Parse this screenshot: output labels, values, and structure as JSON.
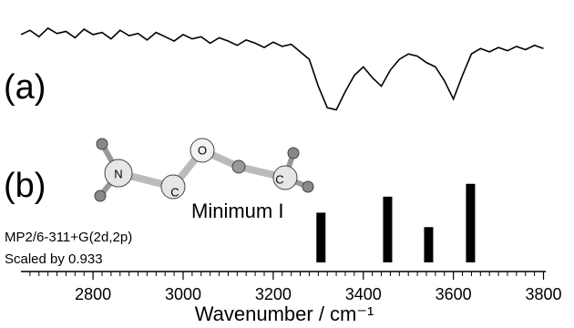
{
  "chart_data": [
    {
      "type": "line",
      "panel_label": "(a)",
      "x": [
        2640,
        2660,
        2680,
        2700,
        2720,
        2740,
        2760,
        2780,
        2800,
        2820,
        2840,
        2860,
        2880,
        2900,
        2920,
        2940,
        2960,
        2980,
        3000,
        3020,
        3040,
        3060,
        3080,
        3100,
        3120,
        3140,
        3160,
        3180,
        3200,
        3220,
        3240,
        3260,
        3280,
        3300,
        3320,
        3340,
        3360,
        3380,
        3400,
        3420,
        3440,
        3460,
        3480,
        3500,
        3520,
        3540,
        3560,
        3580,
        3600,
        3620,
        3640,
        3660,
        3680,
        3700,
        3720,
        3740,
        3760,
        3780,
        3800
      ],
      "values": [
        78,
        82,
        76,
        84,
        79,
        81,
        75,
        83,
        78,
        80,
        74,
        82,
        77,
        79,
        73,
        80,
        76,
        72,
        78,
        74,
        76,
        70,
        75,
        72,
        68,
        73,
        70,
        66,
        71,
        67,
        69,
        62,
        55,
        30,
        10,
        8,
        25,
        40,
        48,
        38,
        30,
        45,
        55,
        60,
        58,
        52,
        48,
        35,
        18,
        40,
        60,
        65,
        62,
        66,
        63,
        67,
        64,
        68,
        65
      ],
      "color": "#000000",
      "ylim": [
        0,
        100
      ]
    },
    {
      "type": "stick",
      "panel_label": "(b)",
      "annotation": "Minimum I",
      "method": "MP2/6-311+G(2d,2p)",
      "scaling": "Scaled by 0.933",
      "molecule_labels": [
        "N",
        "C",
        "O",
        "C"
      ],
      "x": [
        3306,
        3454,
        3545,
        3638
      ],
      "values": [
        62,
        82,
        44,
        98
      ],
      "color": "#000000",
      "ylim": [
        0,
        100
      ],
      "xlim": [
        2640,
        3805
      ],
      "xticks": [
        2800,
        3000,
        3200,
        3400,
        3600,
        3800
      ],
      "xminor_ticks": [
        2660,
        2680,
        2700,
        2720,
        2740,
        2760,
        2780,
        2820,
        2840,
        2860,
        2880,
        2900,
        2920,
        2940,
        2960,
        2980,
        3020,
        3040,
        3060,
        3080,
        3100,
        3120,
        3140,
        3160,
        3180,
        3220,
        3240,
        3260,
        3280,
        3300,
        3320,
        3340,
        3360,
        3380,
        3420,
        3440,
        3460,
        3480,
        3500,
        3520,
        3540,
        3560,
        3580,
        3620,
        3640,
        3660,
        3680,
        3700,
        3720,
        3740,
        3760,
        3780
      ],
      "xlabel": "Wavenumber / cm⁻¹"
    }
  ]
}
